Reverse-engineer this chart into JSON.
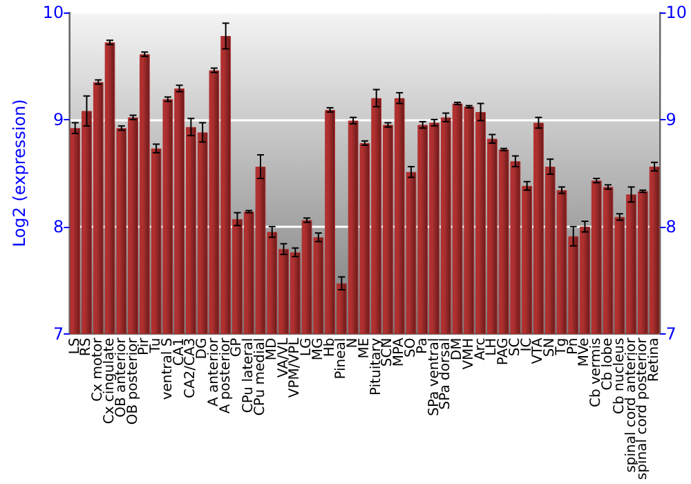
{
  "chart_data": {
    "type": "bar",
    "ylabel": "Log2 (expression)",
    "categories": [
      "LS",
      "RS",
      "Cx motor",
      "Cx cingulate",
      "OB anterior",
      "OB posterior",
      "Pir",
      "Tu",
      "ventral S",
      "CA1",
      "CA2/CA3",
      "DG",
      "A anterior",
      "A posterior",
      "GP",
      "CPu lateral",
      "CPu medial",
      "MD",
      "VA/VL",
      "VPM/VPL",
      "LG",
      "MG",
      "Hb",
      "Pineal",
      "N",
      "ME",
      "Pituitary",
      "SCN",
      "MPA",
      "SO",
      "Pa",
      "SPa ventral",
      "SPa dorsal",
      "DM",
      "VMH",
      "Arc",
      "LH",
      "PAG",
      "SC",
      "IC",
      "VTA",
      "SN",
      "Tg",
      "Pn",
      "MVe",
      "Cb vermis",
      "Cb lobe",
      "Cb nucleus",
      "spinal cord anterior",
      "spinal cord posterior",
      "Retina"
    ],
    "values": [
      8.92,
      9.08,
      9.35,
      9.72,
      8.92,
      9.02,
      9.61,
      8.73,
      9.19,
      9.29,
      8.93,
      8.88,
      9.46,
      9.78,
      8.07,
      8.14,
      8.56,
      7.95,
      7.79,
      7.76,
      8.06,
      7.9,
      9.09,
      7.47,
      8.99,
      8.78,
      9.2,
      8.95,
      9.2,
      8.51,
      8.95,
      8.97,
      9.02,
      9.15,
      9.12,
      9.07,
      8.82,
      8.72,
      8.61,
      8.38,
      8.97,
      8.56,
      8.34,
      7.91,
      8.0,
      8.43,
      8.37,
      8.09,
      8.3,
      8.33,
      8.56
    ],
    "errors": [
      0.05,
      0.14,
      0.02,
      0.02,
      0.02,
      0.02,
      0.02,
      0.04,
      0.02,
      0.03,
      0.08,
      0.09,
      0.02,
      0.12,
      0.06,
      0.01,
      0.11,
      0.05,
      0.05,
      0.04,
      0.02,
      0.04,
      0.02,
      0.06,
      0.03,
      0.02,
      0.08,
      0.02,
      0.05,
      0.05,
      0.03,
      0.03,
      0.04,
      0.01,
      0.01,
      0.08,
      0.04,
      0.01,
      0.05,
      0.04,
      0.05,
      0.07,
      0.03,
      0.09,
      0.05,
      0.02,
      0.02,
      0.03,
      0.07,
      0.01,
      0.04
    ],
    "color": "#b03030",
    "ylim": [
      7,
      10
    ],
    "yticks": [
      7,
      8,
      9,
      10
    ],
    "y2lim": [
      7,
      10
    ],
    "y2ticks": [
      7,
      8,
      9,
      10
    ],
    "grid": "y"
  }
}
